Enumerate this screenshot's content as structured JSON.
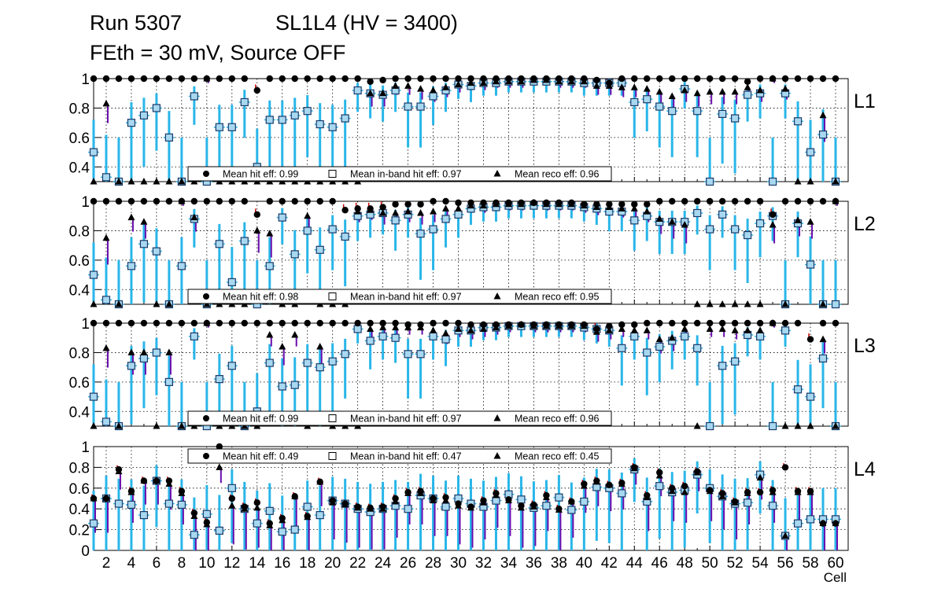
{
  "header": {
    "run": "Run 5307",
    "superlayer": "SL1L4 (HV = 3400)",
    "conditions": "FEth = 30 mV, Source OFF"
  },
  "colors": {
    "hit": "#000000",
    "inband_fill": "#a8d8f0",
    "error_bar": "#29b6e8",
    "error_red": "#cc0000",
    "error_purple": "#6a0dad",
    "grid": "#000000"
  },
  "chart_data": {
    "type": "scatter",
    "xlabel": "Cell",
    "xlim": [
      1,
      61
    ],
    "x_ticks": [
      "2",
      "4",
      "6",
      "8",
      "10",
      "12",
      "14",
      "16",
      "18",
      "20",
      "22",
      "24",
      "26",
      "28",
      "30",
      "32",
      "34",
      "36",
      "38",
      "40",
      "42",
      "44",
      "46",
      "48",
      "50",
      "52",
      "54",
      "56",
      "58",
      "60"
    ],
    "legend_labels": [
      "Mean hit  eff: ",
      "Mean in-band hit eff: ",
      "Mean reco eff: "
    ],
    "layers": [
      {
        "name": "L1",
        "ylim": [
          0.3,
          1.0
        ],
        "y_ticks": [
          "0.4",
          "0.6",
          "0.8",
          "1"
        ],
        "legend_values": [
          "0.99",
          "0.97",
          "0.96"
        ],
        "hit": [
          1,
          1,
          1,
          1,
          1,
          1,
          1,
          1,
          1,
          1,
          1,
          1,
          1,
          0.92,
          1,
          1,
          1,
          1,
          1,
          1,
          1,
          1,
          0.98,
          0.99,
          1,
          1,
          1,
          1,
          1,
          1,
          1,
          1,
          1,
          1,
          1,
          1,
          1,
          1,
          1,
          1,
          0.99,
          0.97,
          1,
          1,
          1,
          1,
          1,
          1,
          1,
          1,
          1,
          1,
          0.98,
          1,
          1,
          1,
          1,
          1,
          1,
          1
        ],
        "inband": [
          0.5,
          0.33,
          0.3,
          0.7,
          0.75,
          0.8,
          0.6,
          0.3,
          0.88,
          0.3,
          0.67,
          0.67,
          0.84,
          0.4,
          0.72,
          0.72,
          0.75,
          0.78,
          0.69,
          0.67,
          0.73,
          0.92,
          0.9,
          0.89,
          0.92,
          0.81,
          0.81,
          0.88,
          0.92,
          0.96,
          0.95,
          0.97,
          0.97,
          0.98,
          0.98,
          0.98,
          0.98,
          0.98,
          0.98,
          0.97,
          0.97,
          0.97,
          0.97,
          0.84,
          0.86,
          0.81,
          0.78,
          0.93,
          0.78,
          0.3,
          0.76,
          0.73,
          0.89,
          0.9,
          0.3,
          0.9,
          0.71,
          0.5,
          0.62,
          0.3
        ],
        "reco": [
          0.3,
          0.83,
          0.3,
          0.3,
          0.3,
          0.3,
          0.3,
          0.3,
          0.3,
          1,
          0.3,
          0.3,
          0.3,
          0.3,
          0.3,
          0.3,
          0.3,
          0.3,
          0.3,
          0.3,
          0.3,
          0.3,
          0.9,
          0.9,
          0.95,
          0.95,
          0.93,
          0.92,
          0.94,
          0.96,
          0.97,
          0.97,
          0.98,
          0.98,
          0.98,
          0.99,
          0.99,
          0.98,
          0.98,
          0.98,
          0.95,
          0.95,
          0.94,
          0.94,
          0.93,
          0.91,
          0.88,
          0.92,
          0.9,
          0.91,
          0.91,
          0.91,
          0.94,
          0.92,
          1,
          0.93,
          0.3,
          0.3,
          0.75,
          0.3
        ]
      },
      {
        "name": "L2",
        "ylim": [
          0.3,
          1.0
        ],
        "y_ticks": [
          "0.4",
          "0.6",
          "0.8",
          "1"
        ],
        "legend_values": [
          "0.98",
          "0.97",
          "0.95"
        ],
        "hit": [
          1,
          1,
          1,
          1,
          1,
          1,
          1,
          1,
          1,
          1,
          1,
          1,
          1,
          0.91,
          1,
          1,
          1,
          1,
          1,
          1,
          0.94,
          0.95,
          0.95,
          0.96,
          0.98,
          0.98,
          0.98,
          1,
          1,
          0.99,
          0.99,
          0.99,
          0.99,
          0.99,
          0.99,
          0.99,
          0.99,
          0.99,
          0.99,
          0.98,
          0.98,
          0.98,
          0.98,
          0.98,
          0.98,
          1,
          1,
          1,
          1,
          1,
          1,
          1,
          1,
          1,
          0.91,
          1,
          1,
          1,
          1,
          1
        ],
        "inband": [
          0.5,
          0.33,
          0.3,
          0.56,
          0.71,
          0.66,
          0.3,
          0.56,
          0.88,
          0.3,
          0.71,
          0.45,
          0.73,
          0.3,
          0.56,
          0.89,
          0.64,
          0.8,
          0.67,
          0.81,
          0.76,
          0.9,
          0.91,
          0.92,
          0.87,
          0.91,
          0.78,
          0.81,
          0.88,
          0.91,
          0.95,
          0.96,
          0.96,
          0.97,
          0.97,
          0.97,
          0.97,
          0.97,
          0.97,
          0.96,
          0.95,
          0.93,
          0.93,
          0.87,
          0.9,
          0.86,
          0.86,
          0.86,
          0.92,
          0.81,
          0.91,
          0.81,
          0.77,
          0.85,
          0.9,
          0.3,
          0.85,
          0.57,
          0.3,
          0.3
        ],
        "reco": [
          0.3,
          0.75,
          0.3,
          0.89,
          0.86,
          0.3,
          0.3,
          1,
          0.89,
          0.3,
          0.3,
          0.3,
          0.3,
          0.8,
          0.78,
          0.3,
          0.3,
          0.9,
          0.3,
          0.3,
          0.3,
          0.93,
          0.94,
          0.92,
          0.92,
          0.93,
          0.92,
          0.93,
          0.95,
          0.95,
          0.97,
          0.97,
          0.98,
          0.98,
          0.98,
          0.99,
          0.98,
          0.98,
          0.98,
          0.97,
          0.96,
          0.96,
          0.95,
          0.95,
          0.93,
          0.88,
          0.86,
          0.84,
          0.3,
          0.3,
          0.3,
          0.3,
          0.3,
          0.3,
          0.84,
          0.3,
          0.87,
          0.86,
          0.3,
          1
        ]
      },
      {
        "name": "L3",
        "ylim": [
          0.3,
          1.0
        ],
        "y_ticks": [
          "0.4",
          "0.6",
          "0.8",
          "1"
        ],
        "legend_values": [
          "0.99",
          "0.97",
          "0.96"
        ],
        "hit": [
          1,
          1,
          1,
          1,
          1,
          1,
          1,
          1,
          1,
          1,
          1,
          1,
          1,
          1,
          1,
          1,
          1,
          1,
          1,
          1,
          1,
          1,
          1,
          1,
          1,
          0.99,
          0.99,
          1,
          1,
          1,
          0.99,
          0.99,
          0.99,
          0.99,
          0.99,
          0.99,
          0.99,
          0.99,
          0.99,
          0.99,
          0.96,
          0.98,
          0.99,
          0.99,
          1,
          1,
          1,
          1,
          1,
          1,
          1,
          1,
          1,
          1,
          1,
          1,
          1,
          0.89,
          1,
          1
        ],
        "inband": [
          0.5,
          0.33,
          0.3,
          0.71,
          0.76,
          0.8,
          0.6,
          0.3,
          0.91,
          0.3,
          0.62,
          0.71,
          0.3,
          0.4,
          0.73,
          0.57,
          0.58,
          0.73,
          0.7,
          0.74,
          0.79,
          0.96,
          0.88,
          0.91,
          0.9,
          0.79,
          0.79,
          0.91,
          0.89,
          0.95,
          0.95,
          0.97,
          0.97,
          0.98,
          0.98,
          0.98,
          0.98,
          0.98,
          0.98,
          0.97,
          0.96,
          0.95,
          0.83,
          0.91,
          0.8,
          0.84,
          0.88,
          0.91,
          0.83,
          0.3,
          0.71,
          0.74,
          0.92,
          0.91,
          0.3,
          0.95,
          0.55,
          0.5,
          0.76,
          0.3
        ],
        "reco": [
          0.3,
          0.83,
          0.3,
          0.8,
          0.8,
          0.3,
          0.8,
          0.3,
          0.3,
          1,
          0.3,
          0.3,
          0.3,
          0.3,
          0.92,
          0.84,
          0.92,
          0.3,
          0.84,
          0.3,
          0.3,
          0.3,
          0.96,
          0.97,
          0.97,
          0.97,
          0.97,
          0.95,
          0.93,
          0.96,
          0.95,
          0.96,
          0.97,
          0.98,
          0.99,
          0.98,
          0.98,
          0.98,
          0.98,
          0.98,
          0.94,
          0.95,
          0.96,
          0.95,
          0.95,
          0.89,
          0.9,
          0.96,
          0.3,
          0.96,
          0.96,
          0.95,
          0.95,
          0.95,
          1,
          0.3,
          0.3,
          0.3,
          0.89,
          0.3
        ]
      },
      {
        "name": "L4",
        "ylim": [
          0.0,
          1.0
        ],
        "y_ticks": [
          "0",
          "0.2",
          "0.4",
          "0.6",
          "0.8",
          "1"
        ],
        "legend_values": [
          "0.49",
          "0.47",
          "0.45"
        ],
        "hit": [
          0.5,
          0.5,
          0.78,
          0.57,
          0.67,
          0.67,
          0.67,
          0.57,
          0.36,
          0.27,
          1,
          0.5,
          0.42,
          0.46,
          0.26,
          0.31,
          0.52,
          0.33,
          0.66,
          0.48,
          0.45,
          0.42,
          0.41,
          0.42,
          0.5,
          0.56,
          0.57,
          0.5,
          0.51,
          0.45,
          0.42,
          0.48,
          0.55,
          0.49,
          0.43,
          0.44,
          0.53,
          0.4,
          0.47,
          0.64,
          0.67,
          0.63,
          0.65,
          0.8,
          0.53,
          0.75,
          0.6,
          0.62,
          0.76,
          0.58,
          0.55,
          0.47,
          0.56,
          0.56,
          0.58,
          0.8,
          0.57,
          0.57,
          0.26,
          0.26
        ],
        "inband": [
          0.26,
          0.5,
          0.45,
          0.44,
          0.34,
          0.67,
          0.45,
          0.44,
          0.15,
          0.35,
          0.19,
          0.6,
          0.4,
          0.26,
          0.38,
          0.18,
          0.2,
          0.42,
          0.34,
          0.48,
          0.45,
          0.4,
          0.37,
          0.4,
          0.43,
          0.4,
          0.53,
          0.5,
          0.42,
          0.5,
          0.45,
          0.42,
          0.48,
          0.54,
          0.49,
          0.41,
          0.43,
          0.51,
          0.39,
          0.47,
          0.61,
          0.6,
          0.55,
          0.78,
          0.47,
          0.62,
          0.56,
          0.58,
          0.73,
          0.6,
          0.52,
          0.45,
          0.46,
          0.73,
          0.43,
          0.14,
          0.26,
          0.3,
          0.3,
          0.3
        ],
        "reco": [
          0.5,
          0.5,
          0.76,
          0.56,
          0.67,
          0.67,
          0.64,
          0.55,
          0.33,
          0.25,
          0.8,
          0.43,
          0.4,
          0.41,
          0.24,
          0.29,
          0.52,
          0.32,
          0.66,
          0.46,
          0.44,
          0.41,
          0.4,
          0.4,
          0.47,
          0.55,
          0.55,
          0.48,
          0.48,
          0.43,
          0.41,
          0.46,
          0.53,
          0.48,
          0.41,
          0.42,
          0.51,
          0.39,
          0.47,
          0.62,
          0.66,
          0.63,
          0.64,
          0.79,
          0.51,
          0.72,
          0.57,
          0.56,
          0.75,
          0.57,
          0.52,
          0.46,
          0.55,
          0.7,
          0.56,
          0.14,
          0.56,
          0.56,
          0.26,
          0.26
        ]
      }
    ]
  }
}
